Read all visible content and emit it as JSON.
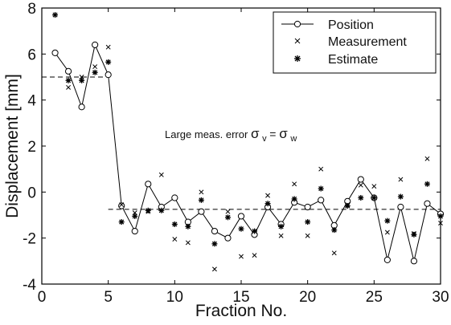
{
  "chart_data": {
    "type": "line",
    "xlabel": "Fraction No.",
    "ylabel": "Displacement [mm]",
    "xlim": [
      0,
      30
    ],
    "ylim": [
      -4,
      8
    ],
    "x_ticks": [
      "0",
      "5",
      "10",
      "15",
      "20",
      "25",
      "30"
    ],
    "y_ticks": [
      "8",
      "6",
      "4",
      "2",
      "0",
      "-2",
      "-4"
    ],
    "grid": false,
    "legend_position": "top-right",
    "annotation": {
      "text": "Large meas. error ",
      "math_sigma": "σ",
      "math_v": "v",
      "math_eq": " = ",
      "math_w": "w"
    },
    "series": [
      {
        "name": "Position",
        "marker": "circle",
        "line": true,
        "x": [
          1,
          2,
          3,
          4,
          5,
          6,
          7,
          8,
          9,
          10,
          11,
          12,
          13,
          14,
          15,
          16,
          17,
          18,
          19,
          20,
          21,
          22,
          23,
          24,
          25,
          26,
          27,
          28,
          29,
          30
        ],
        "y": [
          6.05,
          5.25,
          3.7,
          6.4,
          5.1,
          -0.6,
          -1.7,
          0.35,
          -0.65,
          -0.25,
          -1.3,
          -0.85,
          -1.7,
          -2.0,
          -1.05,
          -1.85,
          -0.65,
          -1.4,
          -0.45,
          -0.65,
          -0.35,
          -1.45,
          -0.4,
          0.55,
          -0.25,
          -2.95,
          -0.65,
          -3.0,
          -0.5,
          -0.95
        ]
      },
      {
        "name": "Measurement",
        "marker": "x",
        "line": false,
        "x": [
          2,
          3,
          4,
          5,
          6,
          7,
          8,
          9,
          10,
          11,
          12,
          13,
          14,
          15,
          16,
          17,
          18,
          19,
          20,
          21,
          22,
          23,
          24,
          25,
          26,
          27,
          28,
          29,
          30
        ],
        "y": [
          4.55,
          5.0,
          5.45,
          6.3,
          -0.55,
          -0.9,
          -0.85,
          0.75,
          -2.05,
          -2.2,
          0.0,
          -3.35,
          -0.85,
          -2.8,
          -2.75,
          -0.15,
          -1.9,
          0.35,
          -1.9,
          1.0,
          -2.65,
          -0.55,
          0.3,
          0.25,
          -1.75,
          0.55,
          -1.8,
          1.45,
          -1.35
        ]
      },
      {
        "name": "Estimate",
        "marker": "star",
        "line": false,
        "x": [
          1,
          2,
          3,
          4,
          5,
          6,
          7,
          8,
          9,
          10,
          11,
          12,
          13,
          14,
          15,
          16,
          17,
          18,
          19,
          20,
          21,
          22,
          23,
          24,
          25,
          26,
          27,
          28,
          29,
          30
        ],
        "y": [
          7.7,
          4.85,
          4.85,
          5.2,
          5.65,
          -1.3,
          -1.05,
          -0.8,
          -0.8,
          -1.4,
          -1.5,
          -0.35,
          -2.25,
          -1.1,
          -1.6,
          -1.7,
          -0.5,
          -1.5,
          -0.3,
          -1.3,
          0.15,
          -1.65,
          -0.6,
          -0.25,
          -0.25,
          -1.25,
          -0.2,
          -1.85,
          0.35,
          -1.05
        ]
      }
    ],
    "reference_lines": [
      {
        "style": "dashed",
        "x": [
          0,
          5
        ],
        "y": [
          5.0,
          5.0
        ]
      },
      {
        "style": "dashed",
        "x": [
          5,
          30
        ],
        "y": [
          -0.75,
          -0.75
        ]
      }
    ]
  }
}
